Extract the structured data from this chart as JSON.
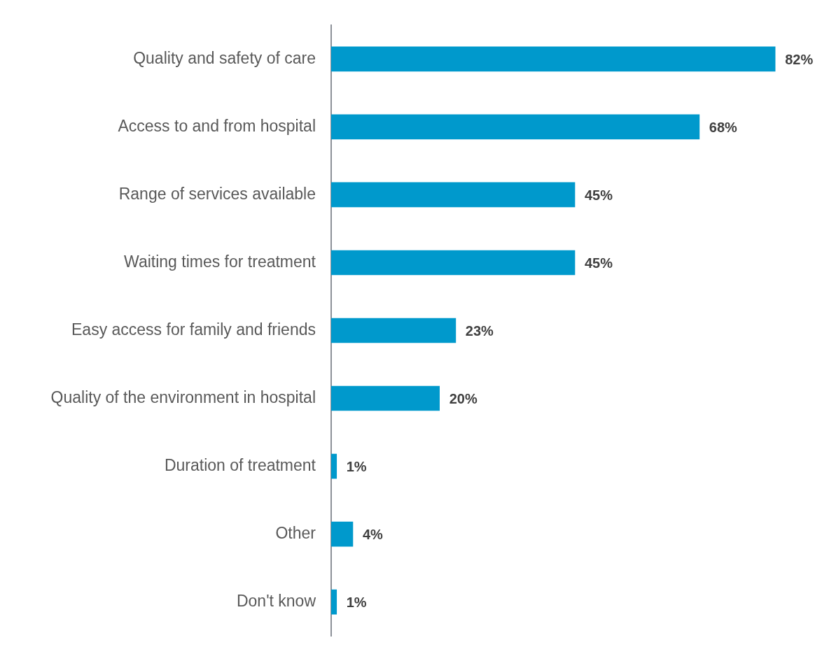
{
  "chart_data": {
    "type": "bar",
    "orientation": "horizontal",
    "categories": [
      "Quality and safety of care",
      "Access to and from hospital",
      "Range of services available",
      "Waiting times for treatment",
      "Easy access for family and friends",
      "Quality of the environment in hospital",
      "Duration of treatment",
      "Other",
      "Don't know"
    ],
    "values": [
      82,
      68,
      45,
      45,
      23,
      20,
      1,
      4,
      1
    ],
    "value_labels": [
      "82%",
      "68%",
      "45%",
      "45%",
      "23%",
      "20%",
      "1%",
      "4%",
      "1%"
    ],
    "color": "#0099cc",
    "tick_labels": "y"
  }
}
